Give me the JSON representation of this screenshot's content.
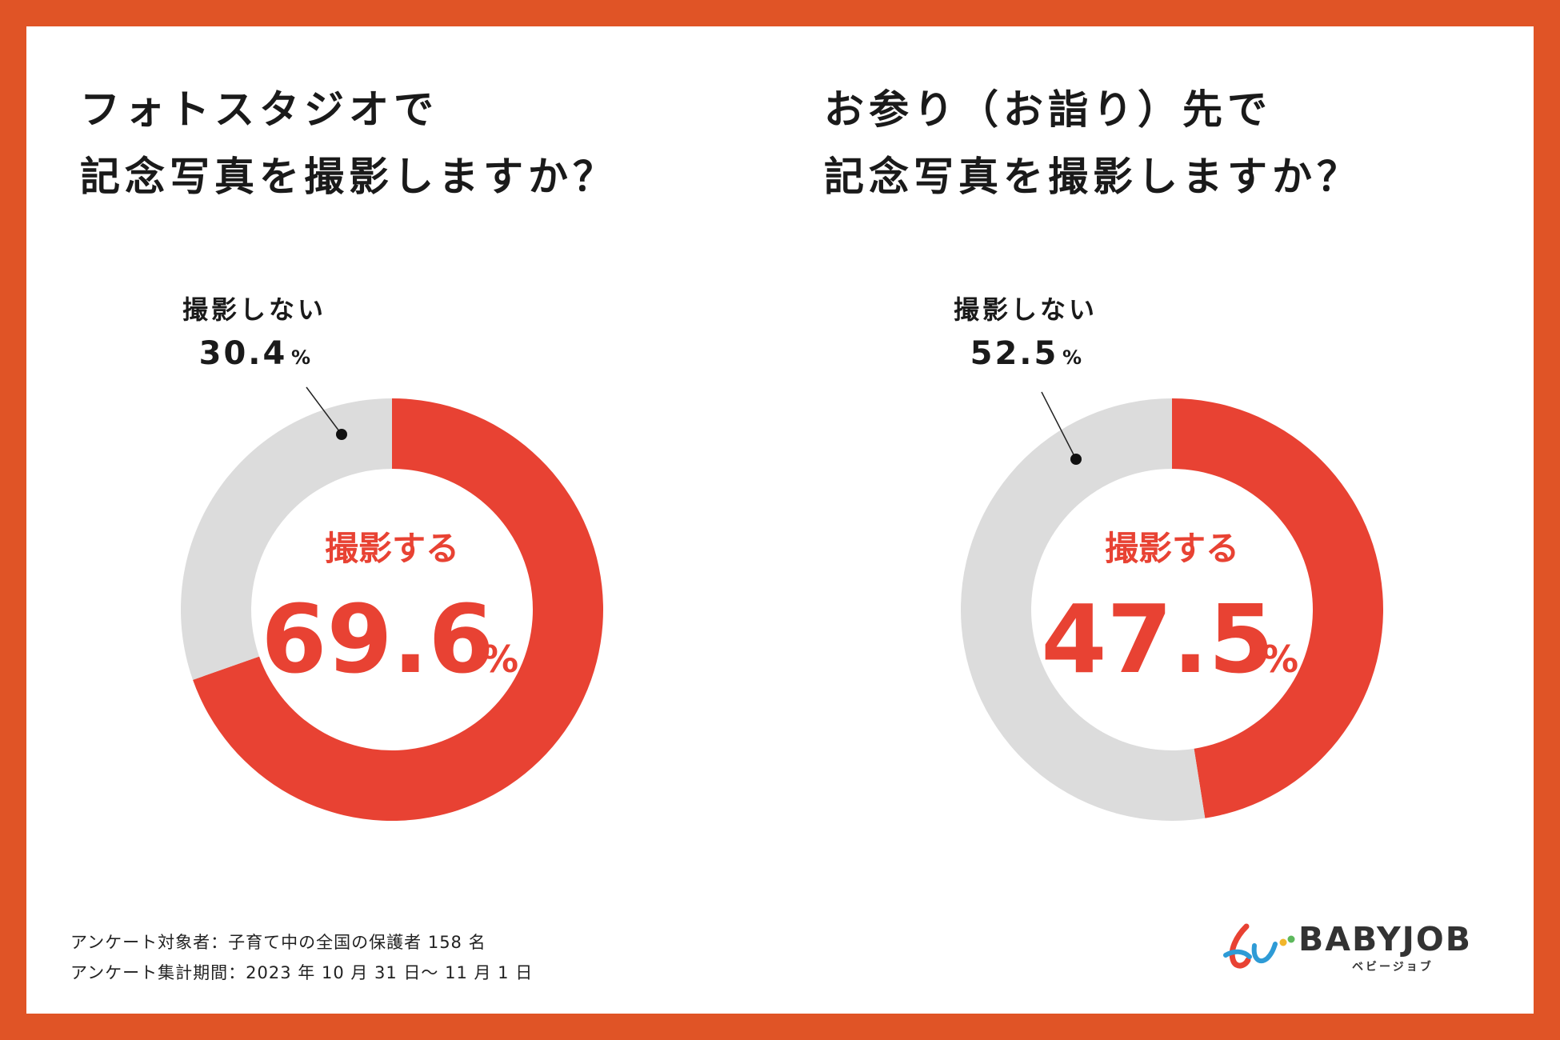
{
  "colors": {
    "frame": "#E05426",
    "yes": "#E84233",
    "no": "#DCDCDC",
    "text": "#1a1a1a"
  },
  "chart_data": [
    {
      "type": "pie",
      "style": "donut",
      "title_lines": [
        "フォトスタジオで",
        "記念写真を撮影しますか？"
      ],
      "slices": [
        {
          "label": "撮影する",
          "value": 69.6
        },
        {
          "label": "撮影しない",
          "value": 30.4
        }
      ],
      "center_label": "撮影する",
      "center_value": "69.6",
      "outside_label": "撮影しない",
      "outside_value": "30.4",
      "unit": "%"
    },
    {
      "type": "pie",
      "style": "donut",
      "title_lines": [
        "お参り（お詣り）先で",
        "記念写真を撮影しますか？"
      ],
      "slices": [
        {
          "label": "撮影する",
          "value": 47.5
        },
        {
          "label": "撮影しない",
          "value": 52.5
        }
      ],
      "center_label": "撮影する",
      "center_value": "47.5",
      "outside_label": "撮影しない",
      "outside_value": "52.5",
      "unit": "%"
    }
  ],
  "footnotes": [
    "アンケート対象者：子育て中の全国の保護者 158 名",
    "アンケート集計期間：2023 年 10 月 31 日～ 11 月 1 日"
  ],
  "logo": {
    "text": "BABYJOB",
    "sub": "ベビージョブ",
    "icon": "babyjob-logo-icon"
  }
}
